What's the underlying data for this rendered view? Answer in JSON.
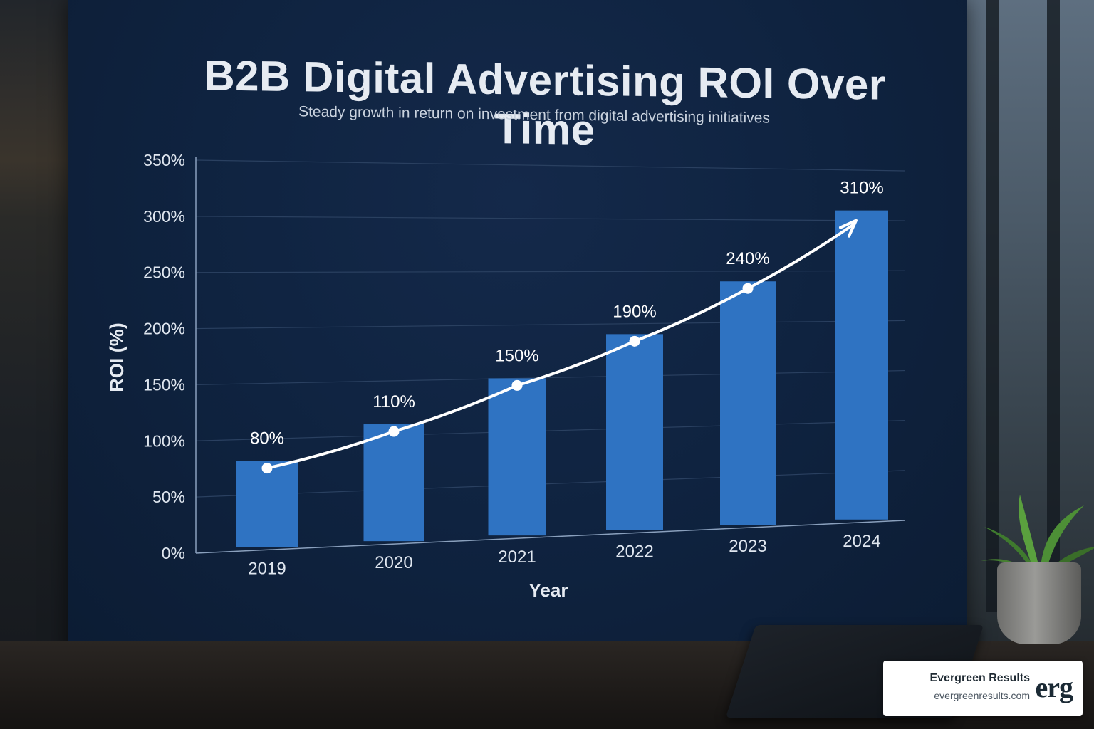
{
  "chart_data": {
    "type": "bar",
    "title": "B2B Digital Advertising ROI Over Time",
    "subtitle": "Steady growth in return on investment from digital advertising initiatives",
    "xlabel": "Year",
    "ylabel": "ROI (%)",
    "categories": [
      "2019",
      "2020",
      "2021",
      "2022",
      "2023",
      "2024"
    ],
    "values": [
      80,
      110,
      150,
      190,
      240,
      310
    ],
    "data_labels": [
      "80%",
      "110%",
      "150%",
      "190%",
      "240%",
      "310%"
    ],
    "ylim": [
      0,
      350
    ],
    "y_ticks": [
      0,
      50,
      100,
      150,
      200,
      250,
      300,
      350
    ],
    "y_tick_labels": [
      "0%",
      "50%",
      "100%",
      "150%",
      "200%",
      "250%",
      "300%",
      "350%"
    ],
    "trend_line": true,
    "grid": true,
    "colors": {
      "bar": "#2f73c2",
      "line": "#ffffff",
      "grid": "#2a4060",
      "axis_text": "#dfe6ef"
    }
  },
  "brand": {
    "name": "Evergreen Results",
    "url": "evergreenresults.com",
    "mark": "erg"
  }
}
